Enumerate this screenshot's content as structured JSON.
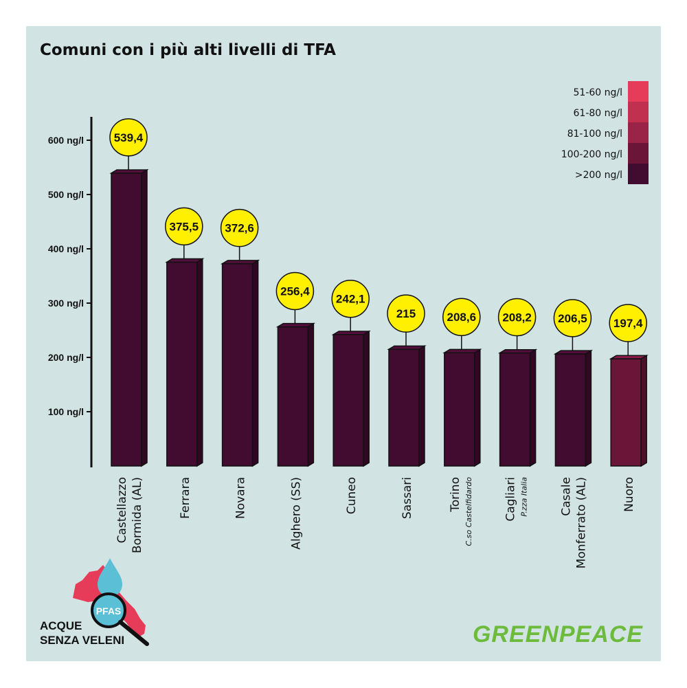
{
  "chart_data": {
    "type": "bar",
    "title": "Comuni con i più alti livelli di TFA",
    "categories": [
      {
        "label": [
          "Castellazzo",
          "Bormida (AL)"
        ],
        "sub": ""
      },
      {
        "label": [
          "Ferrara"
        ],
        "sub": ""
      },
      {
        "label": [
          "Novara"
        ],
        "sub": ""
      },
      {
        "label": [
          "Alghero (SS)"
        ],
        "sub": ""
      },
      {
        "label": [
          "Cuneo"
        ],
        "sub": ""
      },
      {
        "label": [
          "Sassari"
        ],
        "sub": ""
      },
      {
        "label": [
          "Torino"
        ],
        "sub": "C.so Castelfidardo"
      },
      {
        "label": [
          "Cagliari"
        ],
        "sub": "P.zza Italia"
      },
      {
        "label": [
          "Casale",
          "Monferrato (AL)"
        ],
        "sub": ""
      },
      {
        "label": [
          "Nuoro"
        ],
        "sub": ""
      }
    ],
    "values": [
      539.4,
      375.5,
      372.6,
      256.4,
      242.1,
      215,
      208.6,
      208.2,
      206.5,
      197.4
    ],
    "value_labels": [
      "539,4",
      "375,5",
      "372,6",
      "256,4",
      "242,1",
      "215",
      "208,6",
      "208,2",
      "206,5",
      "197,4"
    ],
    "yticks": [
      {
        "value": 100,
        "label": "100 ng/l"
      },
      {
        "value": 200,
        "label": "200 ng/l"
      },
      {
        "value": 300,
        "label": "300 ng/l"
      },
      {
        "value": 400,
        "label": "400 ng/l"
      },
      {
        "value": 500,
        "label": "500 ng/l"
      },
      {
        "value": 600,
        "label": "600 ng/l"
      }
    ],
    "ylim": [
      0,
      650
    ],
    "legend": {
      "placement": "top-right",
      "entries": [
        {
          "label": "51-60 ng/l",
          "color": "#e63c5a"
        },
        {
          "label": "61-80 ng/l",
          "color": "#c2304f"
        },
        {
          "label": "81-100 ng/l",
          "color": "#9a2348"
        },
        {
          "label": "100-200 ng/l",
          "color": "#6b1639"
        },
        {
          "label": ">200 ng/l",
          "color": "#420b30"
        }
      ]
    },
    "bar_class": [
      "&gt;200 ng/l"
    ],
    "colors": {
      "above_200": "#420b30",
      "range_100_200": "#6b1639",
      "bubble": "#ffef00",
      "background": "#d2e3e3"
    }
  },
  "logos": {
    "campaign": {
      "badge": "PFAS",
      "line1": "ACQUE",
      "line2": "SENZA VELENI"
    },
    "brand": "GREENPEACE"
  }
}
